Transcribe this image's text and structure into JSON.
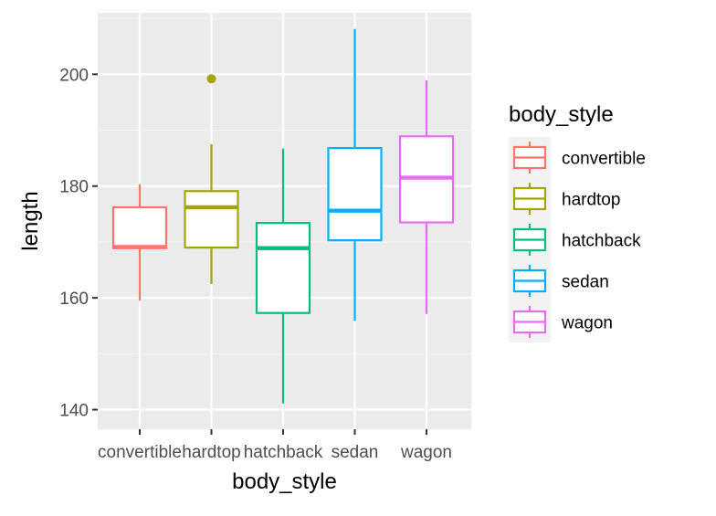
{
  "chart_data": {
    "type": "boxplot",
    "xlabel": "body_style",
    "ylabel": "length",
    "ylim": [
      136.5,
      211
    ],
    "yticks": [
      140,
      160,
      180,
      200
    ],
    "grid": true,
    "legend_title": "body_style",
    "legend_position": "right",
    "categories": [
      "convertible",
      "hardtop",
      "hatchback",
      "sedan",
      "wagon"
    ],
    "colors": [
      "#F8766D",
      "#A3A500",
      "#00BF7D",
      "#00B0F6",
      "#E76BF3"
    ],
    "series": [
      {
        "category": "convertible",
        "whisker_low": 159.5,
        "q1": 168.9,
        "median": 169.1,
        "q3": 176.2,
        "whisker_high": 180.3,
        "outliers": []
      },
      {
        "category": "hardtop",
        "whisker_low": 162.5,
        "q1": 169.0,
        "median": 176.2,
        "q3": 179.1,
        "whisker_high": 187.5,
        "outliers": [
          199.2
        ]
      },
      {
        "category": "hatchback",
        "whisker_low": 141.1,
        "q1": 157.3,
        "median": 168.9,
        "q3": 173.4,
        "whisker_high": 186.7,
        "outliers": []
      },
      {
        "category": "sedan",
        "whisker_low": 155.9,
        "q1": 170.3,
        "median": 175.6,
        "q3": 186.8,
        "whisker_high": 208.1,
        "outliers": []
      },
      {
        "category": "wagon",
        "whisker_low": 157.1,
        "q1": 173.5,
        "median": 181.5,
        "q3": 188.9,
        "whisker_high": 198.9,
        "outliers": []
      }
    ]
  }
}
